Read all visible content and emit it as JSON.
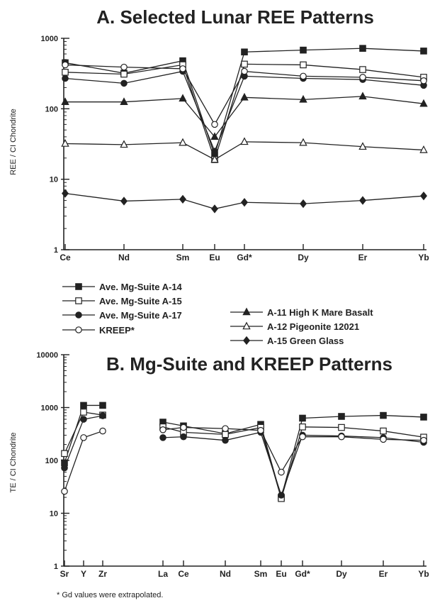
{
  "chart_data": [
    {
      "type": "line",
      "title": "A.  Selected Lunar REE Patterns",
      "ylabel": "REE / CI Chondrite",
      "xlabel": "",
      "yscale": "log",
      "ylim": [
        1,
        1000
      ],
      "yticks": [
        "1",
        "10",
        "100",
        "1000"
      ],
      "categories": [
        "Ce",
        "Nd",
        "Sm",
        "Eu",
        "Gd*",
        "Dy",
        "Er",
        "Yb"
      ],
      "legend": "below",
      "series": [
        {
          "name": "Ave. Mg-Suite A-14",
          "marker": "filled-square",
          "color": "#222222",
          "values": [
            450,
            320,
            480,
            22,
            640,
            680,
            720,
            660
          ]
        },
        {
          "name": "Ave. Mg-Suite A-15",
          "marker": "open-square",
          "color": "#222222",
          "values": [
            330,
            310,
            420,
            19,
            430,
            420,
            360,
            280
          ]
        },
        {
          "name": "Ave. Mg-Suite A-17",
          "marker": "filled-circle",
          "color": "#222222",
          "values": [
            270,
            230,
            340,
            25,
            290,
            270,
            260,
            215
          ]
        },
        {
          "name": "KREEP*",
          "marker": "open-circle",
          "color": "#222222",
          "values": [
            420,
            390,
            370,
            60,
            340,
            290,
            280,
            250
          ]
        },
        {
          "name": "A-11 High K Mare Basalt",
          "marker": "filled-triangle",
          "color": "#222222",
          "values": [
            125,
            125,
            140,
            40,
            145,
            135,
            150,
            118
          ]
        },
        {
          "name": "A-12 Pigeonite 12021",
          "marker": "open-triangle",
          "color": "#222222",
          "values": [
            32,
            31,
            33,
            19,
            34,
            33,
            29,
            26
          ]
        },
        {
          "name": "A-15 Green Glass",
          "marker": "filled-diamond",
          "color": "#222222",
          "values": [
            6.3,
            4.9,
            5.2,
            3.8,
            4.7,
            4.5,
            5.0,
            5.8
          ]
        }
      ]
    },
    {
      "type": "line",
      "title": "B.  Mg-Suite and KREEP Patterns",
      "ylabel": "TE / CI Chondrite",
      "xlabel": "",
      "yscale": "log",
      "ylim": [
        1,
        10000
      ],
      "yticks": [
        "1",
        "10",
        "100",
        "1000",
        "10000"
      ],
      "categories": [
        "Sr",
        "Y",
        "Zr",
        "La",
        "Ce",
        "Nd",
        "Sm",
        "Eu",
        "Gd*",
        "Dy",
        "Er",
        "Yb"
      ],
      "segments": [
        [
          "Sr",
          "Y",
          "Zr"
        ],
        [
          "La",
          "Ce",
          "Nd",
          "Sm",
          "Eu",
          "Gd*",
          "Dy",
          "Er",
          "Yb"
        ]
      ],
      "series": [
        {
          "name": "Ave. Mg-Suite A-14",
          "marker": "filled-square",
          "values": [
            90,
            1100,
            1100,
            530,
            450,
            320,
            480,
            20,
            630,
            680,
            710,
            660
          ]
        },
        {
          "name": "Ave. Mg-Suite A-15",
          "marker": "open-square",
          "values": [
            135,
            820,
            720,
            430,
            340,
            310,
            420,
            19,
            430,
            420,
            360,
            275
          ]
        },
        {
          "name": "Ave. Mg-Suite A-17",
          "marker": "filled-circle",
          "values": [
            72,
            600,
            700,
            270,
            280,
            240,
            340,
            22,
            300,
            290,
            270,
            220
          ]
        },
        {
          "name": "KREEP*",
          "marker": "open-circle",
          "values": [
            26,
            270,
            360,
            380,
            420,
            400,
            370,
            60,
            280,
            280,
            250,
            240
          ]
        }
      ],
      "footnote": "* Gd values were extrapolated."
    }
  ]
}
